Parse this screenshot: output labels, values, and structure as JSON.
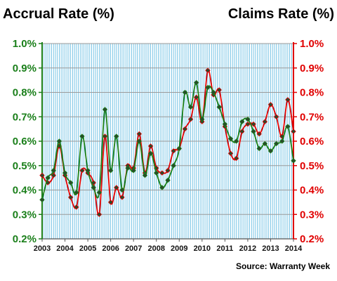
{
  "chart_data": {
    "type": "line",
    "title_left": "Accrual Rate (%)",
    "title_right": "Claims Rate (%)",
    "source": "Source: Warranty Week",
    "colors": {
      "accrual": "#1a7f1a",
      "claims": "#e00000",
      "grid": "#5bb8e0",
      "frame": "#8b8b8b"
    },
    "grid": true,
    "y_left": {
      "range": [
        0.2,
        1.0
      ],
      "ticks": [
        "0.2%",
        "0.3%",
        "0.4%",
        "0.5%",
        "0.6%",
        "0.7%",
        "0.8%",
        "0.9%",
        "1.0%"
      ]
    },
    "y_right": {
      "range": [
        0.2,
        1.0
      ],
      "ticks": [
        "0.2%",
        "0.3%",
        "0.4%",
        "0.5%",
        "0.6%",
        "0.7%",
        "0.8%",
        "0.9%",
        "1.0%"
      ]
    },
    "x_range": [
      2003,
      2014
    ],
    "x_ticks": [
      "2003",
      "2004",
      "2005",
      "2006",
      "2007",
      "2008",
      "2009",
      "2010",
      "2011",
      "2012",
      "2013",
      "2014"
    ],
    "series": [
      {
        "key": "accrual",
        "values": [
          [
            2003.0,
            0.36
          ],
          [
            2003.25,
            0.45
          ],
          [
            2003.5,
            0.48
          ],
          [
            2003.75,
            0.6
          ],
          [
            2004.0,
            0.47
          ],
          [
            2004.25,
            0.43
          ],
          [
            2004.5,
            0.39
          ],
          [
            2004.75,
            0.62
          ],
          [
            2005.0,
            0.48
          ],
          [
            2005.25,
            0.41
          ],
          [
            2005.5,
            0.39
          ],
          [
            2005.75,
            0.73
          ],
          [
            2006.0,
            0.48
          ],
          [
            2006.25,
            0.62
          ],
          [
            2006.5,
            0.4
          ],
          [
            2006.75,
            0.49
          ],
          [
            2007.0,
            0.48
          ],
          [
            2007.25,
            0.6
          ],
          [
            2007.5,
            0.46
          ],
          [
            2007.75,
            0.55
          ],
          [
            2008.0,
            0.47
          ],
          [
            2008.25,
            0.41
          ],
          [
            2008.5,
            0.44
          ],
          [
            2008.75,
            0.5
          ],
          [
            2009.0,
            0.57
          ],
          [
            2009.25,
            0.8
          ],
          [
            2009.5,
            0.74
          ],
          [
            2009.75,
            0.84
          ],
          [
            2010.0,
            0.69
          ],
          [
            2010.25,
            0.82
          ],
          [
            2010.5,
            0.8
          ],
          [
            2010.75,
            0.74
          ],
          [
            2011.0,
            0.67
          ],
          [
            2011.25,
            0.61
          ],
          [
            2011.5,
            0.6
          ],
          [
            2011.75,
            0.68
          ],
          [
            2012.0,
            0.69
          ],
          [
            2012.25,
            0.64
          ],
          [
            2012.5,
            0.57
          ],
          [
            2012.75,
            0.59
          ],
          [
            2013.0,
            0.56
          ],
          [
            2013.25,
            0.59
          ],
          [
            2013.5,
            0.6
          ],
          [
            2013.75,
            0.66
          ],
          [
            2014.0,
            0.52
          ]
        ]
      },
      {
        "key": "claims",
        "values": [
          [
            2003.0,
            0.46
          ],
          [
            2003.25,
            0.43
          ],
          [
            2003.5,
            0.46
          ],
          [
            2003.75,
            0.58
          ],
          [
            2004.0,
            0.46
          ],
          [
            2004.25,
            0.37
          ],
          [
            2004.5,
            0.33
          ],
          [
            2004.75,
            0.48
          ],
          [
            2005.0,
            0.47
          ],
          [
            2005.25,
            0.43
          ],
          [
            2005.5,
            0.3
          ],
          [
            2005.75,
            0.62
          ],
          [
            2006.0,
            0.35
          ],
          [
            2006.25,
            0.41
          ],
          [
            2006.5,
            0.37
          ],
          [
            2006.75,
            0.5
          ],
          [
            2007.0,
            0.49
          ],
          [
            2007.25,
            0.63
          ],
          [
            2007.5,
            0.47
          ],
          [
            2007.75,
            0.58
          ],
          [
            2008.0,
            0.49
          ],
          [
            2008.25,
            0.47
          ],
          [
            2008.5,
            0.48
          ],
          [
            2008.75,
            0.56
          ],
          [
            2009.0,
            0.57
          ],
          [
            2009.25,
            0.65
          ],
          [
            2009.5,
            0.69
          ],
          [
            2009.75,
            0.78
          ],
          [
            2010.0,
            0.68
          ],
          [
            2010.25,
            0.89
          ],
          [
            2010.5,
            0.79
          ],
          [
            2010.75,
            0.81
          ],
          [
            2011.0,
            0.66
          ],
          [
            2011.25,
            0.55
          ],
          [
            2011.5,
            0.53
          ],
          [
            2011.75,
            0.64
          ],
          [
            2012.0,
            0.67
          ],
          [
            2012.25,
            0.67
          ],
          [
            2012.5,
            0.63
          ],
          [
            2012.75,
            0.68
          ],
          [
            2013.0,
            0.75
          ],
          [
            2013.25,
            0.7
          ],
          [
            2013.5,
            0.62
          ],
          [
            2013.75,
            0.77
          ],
          [
            2014.0,
            0.64
          ]
        ]
      }
    ]
  }
}
